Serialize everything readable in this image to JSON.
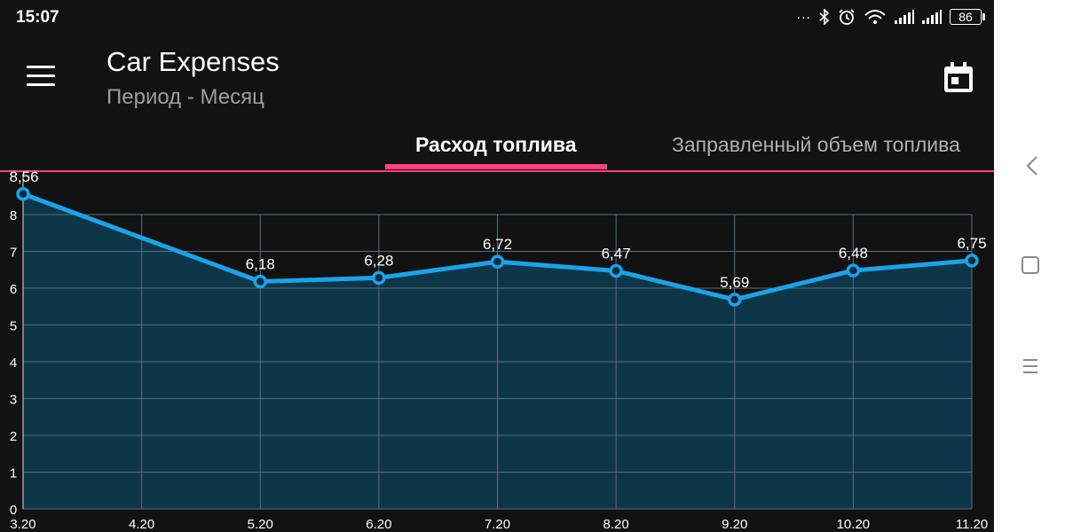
{
  "status_bar": {
    "time": "15:07",
    "dots": "...",
    "battery": "86",
    "icons": [
      "bluetooth-icon",
      "alarm-icon",
      "wifi-icon",
      "signal-icon",
      "signal-icon",
      "battery-icon"
    ]
  },
  "toolbar": {
    "title": "Car Expenses",
    "subtitle": "Период - Месяц",
    "icons": [
      "menu-icon",
      "calendar-icon"
    ]
  },
  "tabs": [
    {
      "label": "Расход топлива",
      "selected": true
    },
    {
      "label": "Заправленный объем топлива",
      "selected": false
    }
  ],
  "colors": {
    "accent": "#ff4081",
    "line": "#1aa3e8",
    "fill": "#0d3649",
    "background": "#121212"
  },
  "chart_data": {
    "type": "area",
    "categories": [
      "3.20",
      "4.20",
      "5.20",
      "6.20",
      "7.20",
      "8.20",
      "9.20",
      "10.20",
      "11.20"
    ],
    "values": [
      8.56,
      null,
      6.18,
      6.28,
      6.72,
      6.47,
      5.69,
      6.48,
      6.75
    ],
    "value_labels": [
      "8,56",
      "",
      "6,18",
      "6,28",
      "6,72",
      "6,47",
      "5,69",
      "6,48",
      "6,75"
    ],
    "y_ticks": [
      "0",
      "1",
      "2",
      "3",
      "4",
      "5",
      "6",
      "7",
      "8"
    ],
    "ylim": [
      0,
      9
    ],
    "grid": true
  },
  "nav_bar": {
    "icons": [
      "back-icon",
      "home-icon",
      "recents-icon"
    ]
  }
}
